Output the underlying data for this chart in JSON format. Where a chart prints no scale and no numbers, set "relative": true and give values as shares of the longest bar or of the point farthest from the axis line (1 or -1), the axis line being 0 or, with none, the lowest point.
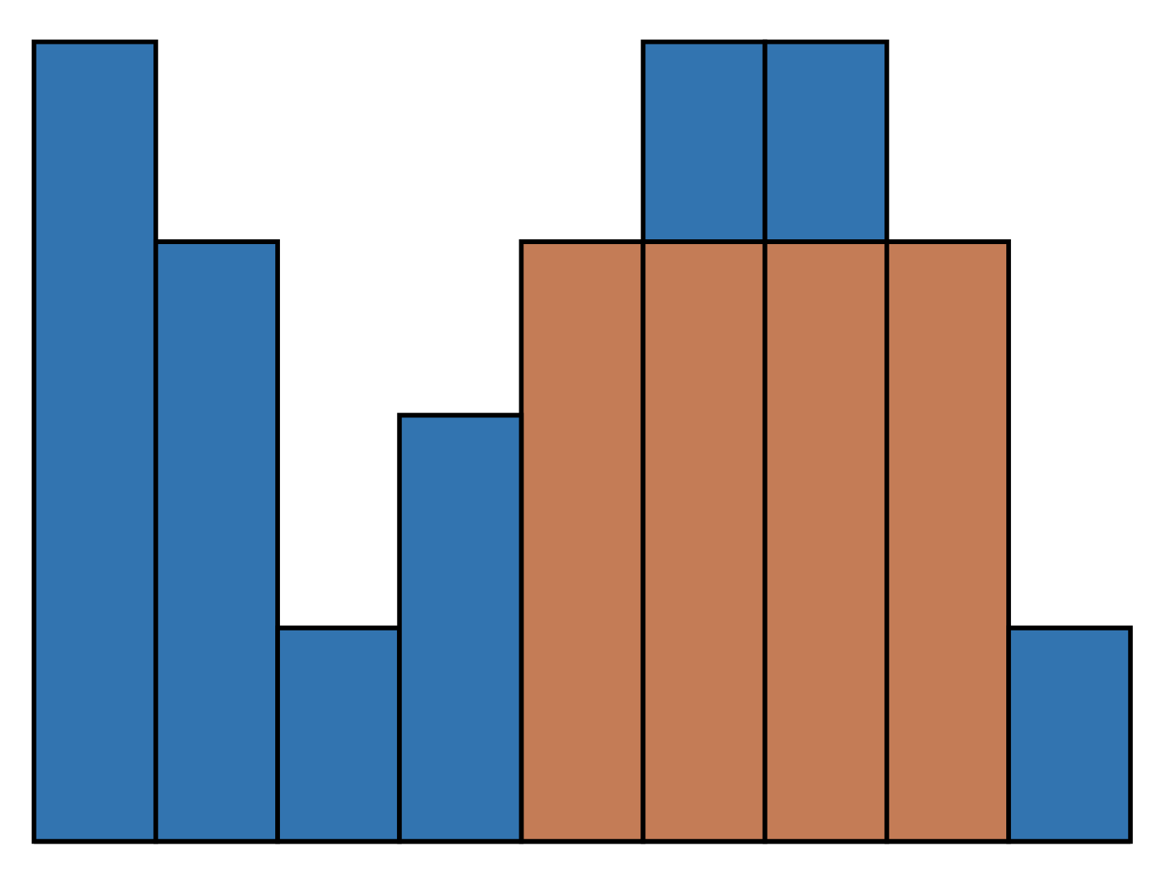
{
  "chart_data": {
    "type": "bar",
    "relative": true,
    "stacked": true,
    "categories": [
      null,
      null,
      null,
      null,
      null,
      null,
      null,
      null,
      null
    ],
    "series": [
      {
        "color": "#c47c56",
        "values": [
          null,
          null,
          null,
          null,
          0.75,
          0.75,
          0.75,
          0.75,
          null
        ]
      },
      {
        "color": "#3274b0",
        "values": [
          1,
          0.75,
          0.267,
          0.533,
          null,
          0.25,
          0.25,
          null,
          0.267
        ]
      }
    ]
  }
}
